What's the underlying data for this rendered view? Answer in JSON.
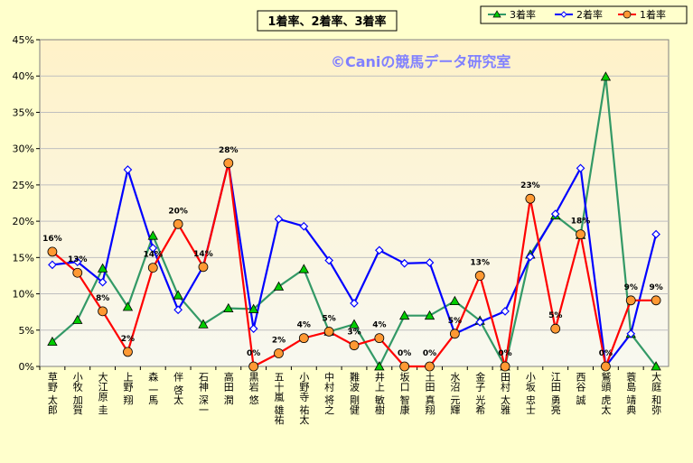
{
  "chart_data": {
    "type": "line",
    "title": "1着率、2着率、3着率",
    "watermark": "©Caniの競馬データ研究室",
    "ylim": [
      0,
      45
    ],
    "yticks": [
      "0%",
      "5%",
      "10%",
      "15%",
      "20%",
      "25%",
      "30%",
      "35%",
      "40%",
      "45%"
    ],
    "grid": true,
    "legend_position": "top-right",
    "categories": [
      "草野 太郎",
      "小牧 加賀",
      "大江原 圭",
      "上野 翔",
      "森 一馬",
      "伴 啓太",
      "石神 深一",
      "高田 潤",
      "黒岩 悠",
      "五十嵐 雄祐",
      "小野寺 祐太",
      "中村 将之",
      "難波 剛健",
      "井上 敏樹",
      "坂口 智康",
      "土田 真翔",
      "水沼 元輝",
      "金子 光希",
      "田村 太雅",
      "小坂 忠士",
      "江田 勇亮",
      "西谷 誠",
      "鷲頭 虎太",
      "蓑島 靖典",
      "大庭 和弥"
    ],
    "series": [
      {
        "name": "3着率",
        "color": "#339966",
        "marker": "triangle",
        "values": [
          3.4,
          6.4,
          13.5,
          8.2,
          18.0,
          9.8,
          5.8,
          8.0,
          7.9,
          11.0,
          13.4,
          4.8,
          5.8,
          0.0,
          7.0,
          7.0,
          9.0,
          6.3,
          0.0,
          15.4,
          20.8,
          18.1,
          39.9,
          4.5,
          0.0
        ]
      },
      {
        "name": "2着率",
        "color": "#0000ff",
        "marker": "diamond",
        "values": [
          14.0,
          14.4,
          11.6,
          27.1,
          16.3,
          7.8,
          13.8,
          28.0,
          5.2,
          20.3,
          19.3,
          14.6,
          8.7,
          16.0,
          14.2,
          14.3,
          4.5,
          6.1,
          7.6,
          15.1,
          21.0,
          27.3,
          0.0,
          4.5,
          18.2
        ]
      },
      {
        "name": "1着率",
        "color": "#ff0000",
        "marker": "circle",
        "values": [
          15.8,
          12.9,
          7.6,
          2.0,
          13.6,
          19.6,
          13.7,
          28.0,
          0.0,
          1.8,
          3.9,
          4.8,
          2.9,
          3.9,
          0.0,
          0.0,
          4.5,
          12.5,
          0.0,
          23.1,
          5.2,
          18.2,
          0.0,
          9.1,
          9.1
        ]
      }
    ],
    "data_labels": [
      "16%",
      "13%",
      "8%",
      "2%",
      "14%",
      "20%",
      "14%",
      "28%",
      "0%",
      "2%",
      "4%",
      "5%",
      "3%",
      "4%",
      "0%",
      "0%",
      "5%",
      "13%",
      "0%",
      "23%",
      "5%",
      "18%",
      "0%",
      "9%",
      "9%"
    ]
  },
  "colors": {
    "background": "#ffffcc",
    "plot_top": "#fff2c8",
    "plot_bottom": "#f8f8f0",
    "title_box": "#ffffcc",
    "grid": "#bfbfbf"
  }
}
